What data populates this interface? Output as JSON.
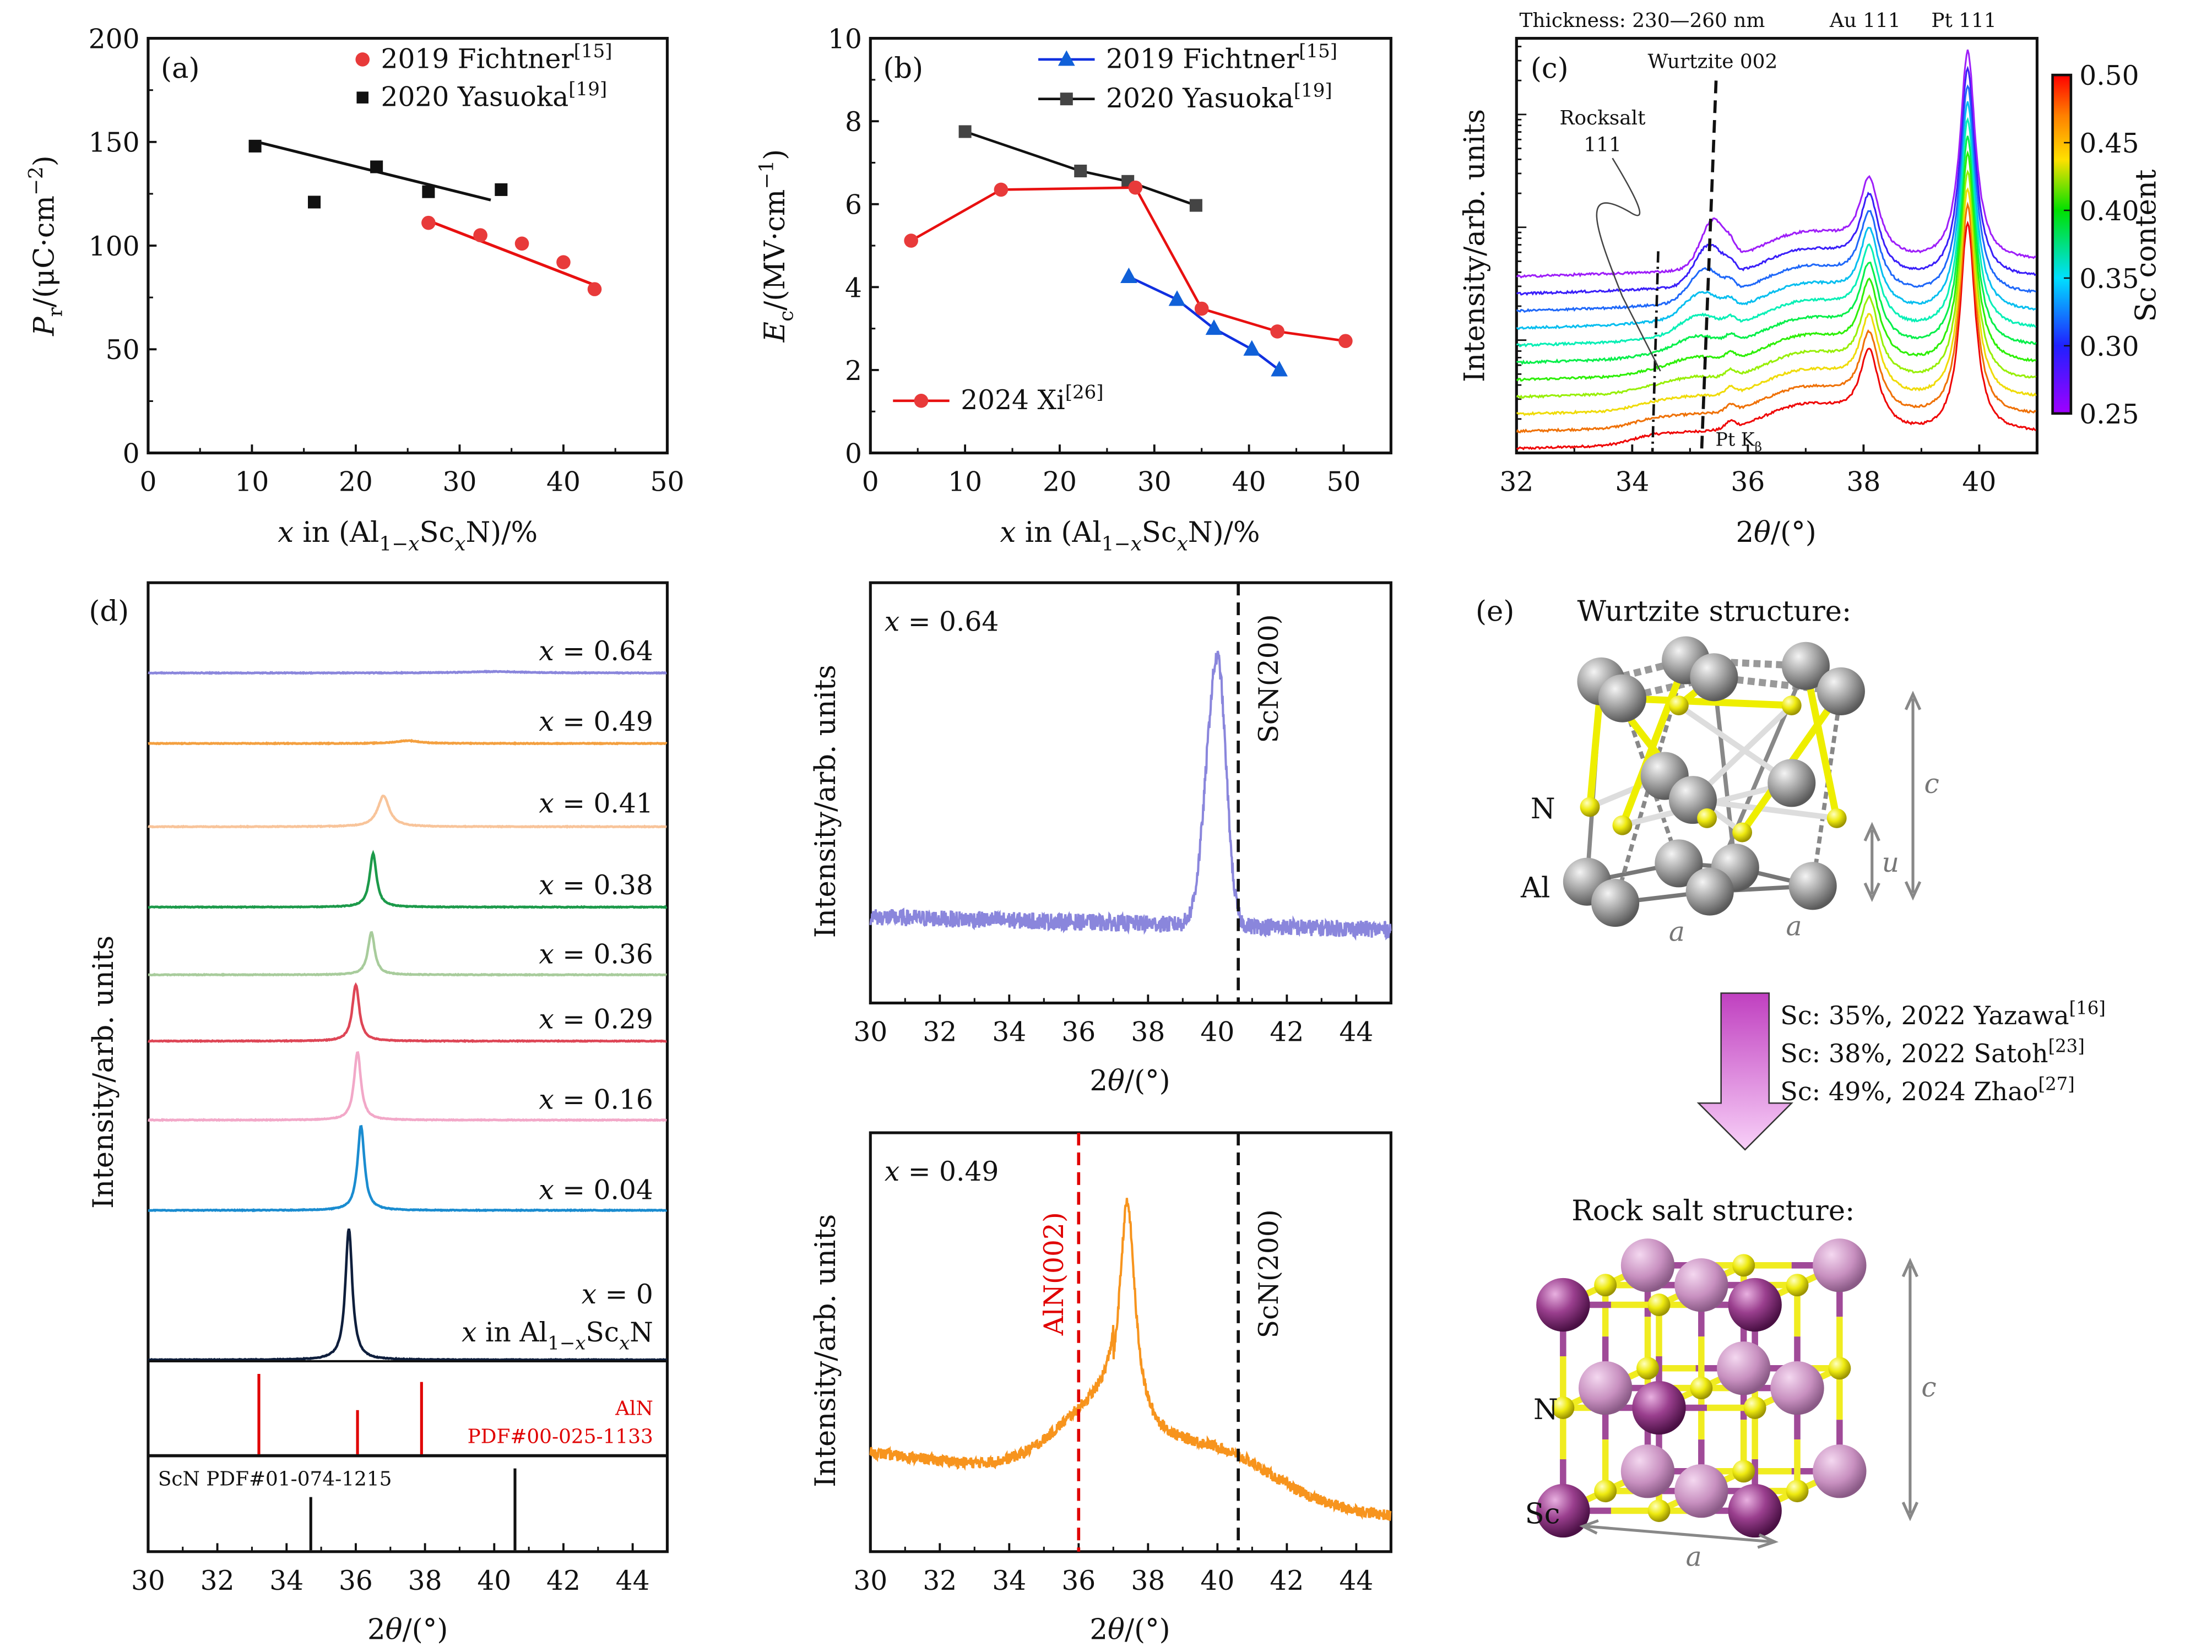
{
  "colors": {
    "red": "#e83a3a",
    "black": "#111111",
    "gray_marker": "#444444",
    "blue": "#1060d8",
    "alN_ref": "#e00000",
    "sc_atom": "#9a3f8e",
    "n_atom": "#f0e800",
    "al_atom": "#9a9a9a"
  },
  "chart_data": [
    {
      "panel": "(a)",
      "type": "scatter",
      "xlabel": "|x| in (Al_{1−|x|}Sc_{|x|}N)/%",
      "ylabel": "|P|_{r}/(μC·cm^{−2})",
      "xlim": [
        0,
        50
      ],
      "ylim": [
        0,
        200
      ],
      "xticks": [
        0,
        10,
        20,
        30,
        40,
        50
      ],
      "yticks": [
        0,
        50,
        100,
        150,
        200
      ],
      "legend_placement": "top-right",
      "series": [
        {
          "name": "2019 Fichtner^{[15]}",
          "marker": "circle",
          "color": "#e83a3a",
          "points": [
            [
              27,
              111
            ],
            [
              32,
              105
            ],
            [
              36,
              101
            ],
            [
              40,
              92
            ],
            [
              43,
              79
            ]
          ],
          "fit": [
            [
              27,
              112
            ],
            [
              43,
              81
            ]
          ]
        },
        {
          "name": "2020 Yasuoka^{[19]}",
          "marker": "square",
          "color": "#111111",
          "points": [
            [
              10.3,
              148
            ],
            [
              16,
              121
            ],
            [
              22,
              138
            ],
            [
              27,
              126
            ],
            [
              34,
              127
            ]
          ],
          "fit": [
            [
              10.5,
              150
            ],
            [
              33,
              122
            ]
          ]
        }
      ]
    },
    {
      "panel": "(b)",
      "type": "line",
      "xlabel": "|x| in (Al_{1−|x|}Sc_{|x|}N)/%",
      "ylabel": "|E|_{c}/(MV·cm^{−1})",
      "xlim": [
        0,
        55
      ],
      "ylim": [
        0,
        10
      ],
      "xticks": [
        0,
        10,
        20,
        30,
        40,
        50
      ],
      "yticks": [
        0,
        2,
        4,
        6,
        8,
        10
      ],
      "series": [
        {
          "name": "2019 Fichtner^{[15]}",
          "marker": "triangle",
          "color": "#1060d8",
          "points": [
            [
              27.3,
              4.25
            ],
            [
              32.4,
              3.7
            ],
            [
              36.3,
              3.0
            ],
            [
              40.3,
              2.5
            ],
            [
              43.2,
              2.0
            ]
          ]
        },
        {
          "name": "2020 Yasuoka^{[19]}",
          "marker": "square",
          "color": "#444444",
          "line_color": "#111111",
          "points": [
            [
              10,
              7.75
            ],
            [
              22.2,
              6.8
            ],
            [
              27.2,
              6.55
            ],
            [
              34.4,
              5.97
            ]
          ]
        },
        {
          "name": "2024 Xi^{[26]}",
          "marker": "circle",
          "color": "#e83a3a",
          "points": [
            [
              4.3,
              5.12
            ],
            [
              13.8,
              6.35
            ],
            [
              28,
              6.4
            ],
            [
              35,
              3.48
            ],
            [
              43,
              2.93
            ],
            [
              50.2,
              2.7
            ]
          ]
        }
      ]
    },
    {
      "panel": "(c)",
      "type": "line",
      "top_labels": [
        "Thickness: 230—260 nm",
        "Au 111",
        "Pt 111"
      ],
      "xlabel": "2|θ|/(°)",
      "ylabel": "Intensity/arb. units",
      "xlim": [
        32,
        41
      ],
      "xticks": [
        32,
        34,
        36,
        38,
        40
      ],
      "annotations": [
        "Wurtzite 002",
        "Rocksalt",
        "111",
        "Pt K_{β}"
      ],
      "colorbar": {
        "label": "Sc content",
        "range": [
          0.25,
          0.5
        ],
        "ticks": [
          "0.25",
          "0.30",
          "0.35",
          "0.40",
          "0.45",
          "0.50"
        ]
      },
      "sc_content": [
        0.5,
        0.475,
        0.45,
        0.425,
        0.4,
        0.375,
        0.35,
        0.325,
        0.3,
        0.275,
        0.25
      ],
      "peaks": {
        "au_111": 38.1,
        "pt_111": 39.8,
        "pt_kbeta": 35.7,
        "wurtzite_002": [
          35.0,
          35.4
        ],
        "rocksalt_111": 34.4
      }
    },
    {
      "panel": "(d)",
      "type": "line",
      "xlabel": "2|θ|/(°)",
      "ylabel": "Intensity/arb. units",
      "xlim": [
        30,
        45
      ],
      "xticks": [
        30,
        32,
        34,
        36,
        38,
        40,
        42,
        44
      ],
      "series": [
        {
          "name": "|x| = 0.64",
          "color": "#8a86dc",
          "peak": 40.0,
          "intensity": 1
        },
        {
          "name": "|x| = 0.49",
          "color": "#f4a040",
          "peak": 37.5,
          "intensity": 2
        },
        {
          "name": "|x| = 0.41",
          "color": "#f8c49a",
          "peak": 36.8,
          "intensity": 22
        },
        {
          "name": "|x| = 0.38",
          "color": "#1c9a4a",
          "peak": 36.5,
          "intensity": 38
        },
        {
          "name": "|x| = 0.36",
          "color": "#a8cc9c",
          "peak": 36.45,
          "intensity": 30
        },
        {
          "name": "|x| = 0.29",
          "color": "#de4656",
          "peak": 36.0,
          "intensity": 40
        },
        {
          "name": "|x| = 0.16",
          "color": "#f2a8c8",
          "peak": 36.05,
          "intensity": 48
        },
        {
          "name": "|x| = 0.04",
          "color": "#1a8cd0",
          "peak": 36.15,
          "intensity": 60
        },
        {
          "name": "|x| = 0",
          "color": "#0e1e3c",
          "peak": 35.8,
          "intensity": 93
        }
      ],
      "series_note": "|x| in Al_{1−|x|}Sc_{|x|}N",
      "references": [
        {
          "label": [
            "AlN",
            "PDF#00-025-1133"
          ],
          "color": "#e00000",
          "lines": [
            [
              33.2,
              1
            ],
            [
              36.05,
              0.55
            ],
            [
              37.9,
              0.9
            ]
          ]
        },
        {
          "label": [
            "ScN PDF#01-074-1215"
          ],
          "color": "#111111",
          "lines": [
            [
              34.7,
              0.65
            ],
            [
              40.6,
              1
            ]
          ]
        }
      ]
    },
    {
      "panel": "middle-top",
      "type": "line",
      "xlabel": "2|θ|/(°)",
      "ylabel": "Intensity/arb. units",
      "xlim": [
        30,
        45
      ],
      "xticks": [
        30,
        32,
        34,
        36,
        38,
        40,
        42,
        44
      ],
      "series_label": "|x| = 0.64",
      "color": "#8a86dc",
      "peak": 40.0,
      "reference_lines": [
        {
          "label": "ScN(200)",
          "x": 40.6,
          "color": "#111111"
        }
      ]
    },
    {
      "panel": "middle-bottom",
      "type": "line",
      "xlabel": "2|θ|/(°)",
      "ylabel": "Intensity/arb. units",
      "xlim": [
        30,
        45
      ],
      "xticks": [
        30,
        32,
        34,
        36,
        38,
        40,
        42,
        44
      ],
      "series_label": "|x| = 0.49",
      "color": "#f7941d",
      "peak": 37.4,
      "reference_lines": [
        {
          "label": "AlN(002)",
          "x": 36.0,
          "color": "#e00000"
        },
        {
          "label": "ScN(200)",
          "x": 40.6,
          "color": "#111111"
        }
      ]
    }
  ],
  "panel_e": {
    "label": "(e)",
    "wurtzite_title": "Wurtzite structure:",
    "wurtzite_labels": {
      "n": "N",
      "al": "Al",
      "c": "c",
      "u": "u",
      "a1": "a",
      "a2": "a"
    },
    "transitions": [
      "Sc: 35%, 2022 Yazawa^{[16]}",
      "Sc: 38%, 2022 Satoh^{[23]}",
      "Sc: 49%, 2024 Zhao^{[27]}"
    ],
    "rocksalt_title": "Rock salt structure:",
    "rocksalt_labels": {
      "n": "N",
      "sc": "Sc",
      "c": "c",
      "a": "a"
    }
  }
}
